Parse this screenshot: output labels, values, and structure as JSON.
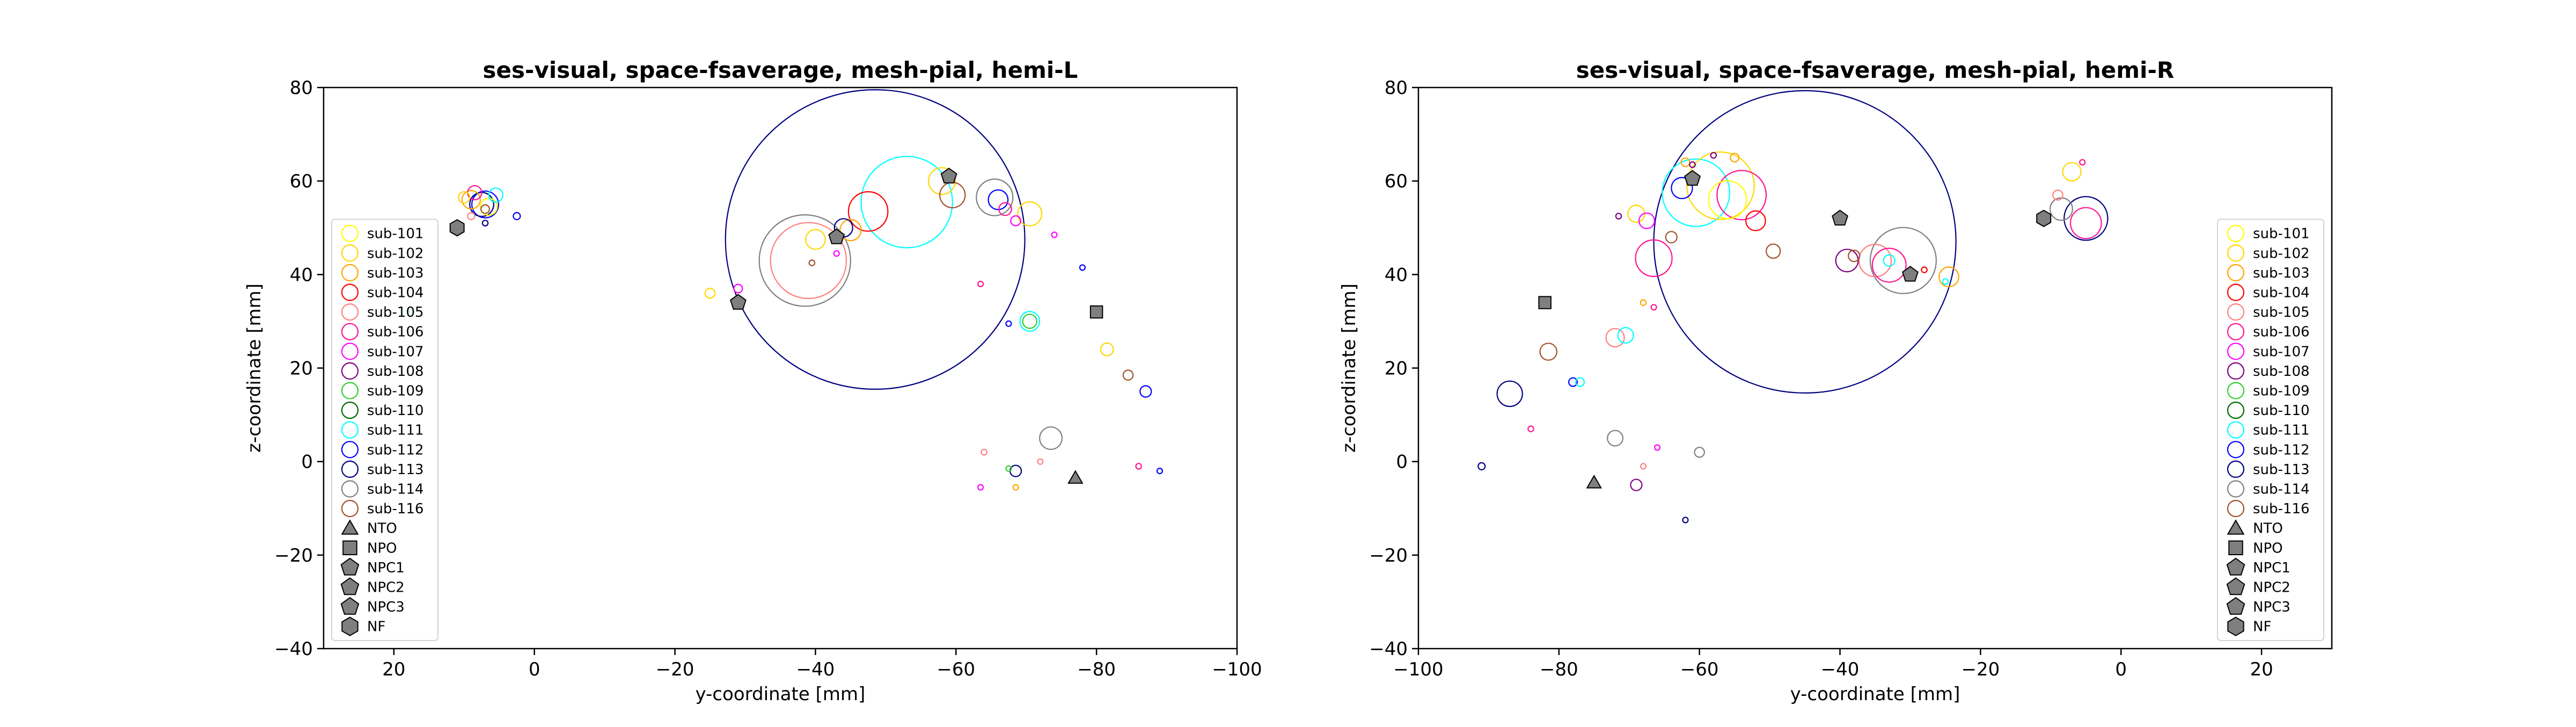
{
  "chart_data": [
    {
      "type": "scatter",
      "title": "ses-visual, space-fsaverage, mesh-pial, hemi-L",
      "xlabel": "y-coordinate [mm]",
      "ylabel": "z-coordinate [mm]",
      "xlim": [
        30,
        -100
      ],
      "ylim": [
        -40,
        80
      ],
      "xticks": [
        20,
        0,
        -20,
        -40,
        -60,
        -80,
        -100
      ],
      "xtick_labels": [
        "20",
        "0",
        "−20",
        "−40",
        "−60",
        "−80",
        "−100"
      ],
      "yticks": [
        -40,
        -20,
        0,
        20,
        40,
        60,
        80
      ],
      "ytick_labels": [
        "−40",
        "−20",
        "0",
        "20",
        "40",
        "60",
        "80"
      ],
      "grid": false,
      "legend_position": "lower-left",
      "legend": [
        {
          "label": "sub-101",
          "marker": "circle",
          "color": "#ffff00"
        },
        {
          "label": "sub-102",
          "marker": "circle",
          "color": "#ffd700"
        },
        {
          "label": "sub-103",
          "marker": "circle",
          "color": "#ffa500"
        },
        {
          "label": "sub-104",
          "marker": "circle",
          "color": "#ff0000"
        },
        {
          "label": "sub-105",
          "marker": "circle",
          "color": "#ff8080"
        },
        {
          "label": "sub-106",
          "marker": "circle",
          "color": "#ff1493"
        },
        {
          "label": "sub-107",
          "marker": "circle",
          "color": "#ff00ff"
        },
        {
          "label": "sub-108",
          "marker": "circle",
          "color": "#800080"
        },
        {
          "label": "sub-109",
          "marker": "circle",
          "color": "#32cd32"
        },
        {
          "label": "sub-110",
          "marker": "circle",
          "color": "#006400"
        },
        {
          "label": "sub-111",
          "marker": "circle",
          "color": "#00ffff"
        },
        {
          "label": "sub-112",
          "marker": "circle",
          "color": "#0000ff"
        },
        {
          "label": "sub-113",
          "marker": "circle",
          "color": "#000080"
        },
        {
          "label": "sub-114",
          "marker": "circle",
          "color": "#808080"
        },
        {
          "label": "sub-116",
          "marker": "circle",
          "color": "#a0522d"
        },
        {
          "label": "NTO",
          "marker": "triangle",
          "color": "#808080"
        },
        {
          "label": "NPO",
          "marker": "square",
          "color": "#808080"
        },
        {
          "label": "NPC1",
          "marker": "pentagon",
          "color": "#808080"
        },
        {
          "label": "NPC2",
          "marker": "pentagon",
          "color": "#808080"
        },
        {
          "label": "NPC3",
          "marker": "pentagon",
          "color": "#808080"
        },
        {
          "label": "NF",
          "marker": "hexagon",
          "color": "#808080"
        }
      ],
      "subject_points": [
        {
          "x": -48.5,
          "y": 47.5,
          "r": 21.3,
          "color": "#000080"
        },
        {
          "x": -53,
          "y": 55.5,
          "r": 6.5,
          "color": "#00ffff"
        },
        {
          "x": -38.5,
          "y": 43,
          "r": 6.5,
          "color": "#808080"
        },
        {
          "x": -39,
          "y": 43,
          "r": 5.4,
          "color": "#ff8080"
        },
        {
          "x": -47.5,
          "y": 53.5,
          "r": 2.8,
          "color": "#ff0000"
        },
        {
          "x": -40,
          "y": 47.5,
          "r": 1.4,
          "color": "#ffd700"
        },
        {
          "x": -45,
          "y": 49.5,
          "r": 1.5,
          "color": "#ffa500"
        },
        {
          "x": -44,
          "y": 50,
          "r": 1.3,
          "color": "#000080"
        },
        {
          "x": -58,
          "y": 60,
          "r": 1.9,
          "color": "#ffd700"
        },
        {
          "x": -59.5,
          "y": 57,
          "r": 1.8,
          "color": "#a0522d"
        },
        {
          "x": -65.5,
          "y": 56.5,
          "r": 2.6,
          "color": "#808080"
        },
        {
          "x": -66,
          "y": 56,
          "r": 1.4,
          "color": "#0000ff"
        },
        {
          "x": -70.5,
          "y": 53,
          "r": 1.7,
          "color": "#ffd700"
        },
        {
          "x": -67,
          "y": 54,
          "r": 0.9,
          "color": "#ff1493"
        },
        {
          "x": -68.5,
          "y": 51.5,
          "r": 0.7,
          "color": "#ff00ff"
        },
        {
          "x": 7,
          "y": 55,
          "r": 1.9,
          "color": "#0000ff"
        },
        {
          "x": 7.5,
          "y": 55,
          "r": 1.7,
          "color": "#000080"
        },
        {
          "x": 6.5,
          "y": 54.5,
          "r": 1.2,
          "color": "#ffff00"
        },
        {
          "x": 9,
          "y": 56,
          "r": 1.3,
          "color": "#ffa500"
        },
        {
          "x": 8.5,
          "y": 57.5,
          "r": 1,
          "color": "#ff1493"
        },
        {
          "x": 5.5,
          "y": 57,
          "r": 1,
          "color": "#00ffff"
        },
        {
          "x": 10,
          "y": 56.5,
          "r": 0.8,
          "color": "#ffd700"
        },
        {
          "x": 7,
          "y": 54,
          "r": 0.6,
          "color": "#a0522d"
        },
        {
          "x": 9,
          "y": 52.5,
          "r": 0.5,
          "color": "#ff8080"
        },
        {
          "x": 2.5,
          "y": 52.5,
          "r": 0.5,
          "color": "#0000ff"
        },
        {
          "x": 7,
          "y": 51,
          "r": 0.4,
          "color": "#000080"
        },
        {
          "x": -25,
          "y": 36,
          "r": 0.7,
          "color": "#ffd700"
        },
        {
          "x": -29,
          "y": 37,
          "r": 0.6,
          "color": "#ff00ff"
        },
        {
          "x": -39.5,
          "y": 42.5,
          "r": 0.4,
          "color": "#a0522d"
        },
        {
          "x": 17.5,
          "y": 32,
          "r": 0.3,
          "color": "#00ffff"
        },
        {
          "x": -43,
          "y": 44.5,
          "r": 0.3,
          "color": "#ff00ff"
        },
        {
          "x": -70.5,
          "y": 30,
          "r": 1.4,
          "color": "#00ffff"
        },
        {
          "x": -70.5,
          "y": 30,
          "r": 1,
          "color": "#32cd32"
        },
        {
          "x": -67.5,
          "y": 29.5,
          "r": 0.2,
          "color": "#0000ff"
        },
        {
          "x": -81.5,
          "y": 24,
          "r": 0.9,
          "color": "#ffd700"
        },
        {
          "x": -84.5,
          "y": 18.5,
          "r": 0.7,
          "color": "#a0522d"
        },
        {
          "x": -87,
          "y": 15,
          "r": 0.8,
          "color": "#0000ff"
        },
        {
          "x": -73.5,
          "y": 5,
          "r": 1.6,
          "color": "#808080"
        },
        {
          "x": -68.5,
          "y": -2,
          "r": 0.8,
          "color": "#000080"
        },
        {
          "x": -64,
          "y": 2,
          "r": 0.4,
          "color": "#ff8080"
        },
        {
          "x": -72,
          "y": 0,
          "r": 0.2,
          "color": "#ff8080"
        },
        {
          "x": -63.5,
          "y": -5.5,
          "r": 0.2,
          "color": "#ff00ff"
        },
        {
          "x": -68.5,
          "y": -5.5,
          "r": 0.3,
          "color": "#ffa500"
        },
        {
          "x": -67.5,
          "y": -1.5,
          "r": 0.3,
          "color": "#32cd32"
        },
        {
          "x": -86,
          "y": -1,
          "r": 0.4,
          "color": "#ff1493"
        },
        {
          "x": -89,
          "y": -2,
          "r": 0.3,
          "color": "#0000ff"
        },
        {
          "x": -74,
          "y": 48.5,
          "r": 0.2,
          "color": "#ff00ff"
        },
        {
          "x": -78,
          "y": 41.5,
          "r": 0.2,
          "color": "#0000ff"
        },
        {
          "x": -63.5,
          "y": 38,
          "r": 0.2,
          "color": "#ff1493"
        }
      ],
      "reference_points": [
        {
          "label": "NTO",
          "marker": "triangle",
          "x": -77,
          "y": -3.5
        },
        {
          "label": "NPO",
          "marker": "square",
          "x": -80,
          "y": 32
        },
        {
          "label": "NPC1",
          "marker": "pentagon",
          "x": -29,
          "y": 34
        },
        {
          "label": "NPC2",
          "marker": "pentagon",
          "x": -43,
          "y": 48
        },
        {
          "label": "NPC3",
          "marker": "pentagon",
          "x": -59,
          "y": 61
        },
        {
          "label": "NF",
          "marker": "hexagon",
          "x": 11,
          "y": 50
        }
      ]
    },
    {
      "type": "scatter",
      "title": "ses-visual, space-fsaverage, mesh-pial, hemi-R",
      "xlabel": "y-coordinate [mm]",
      "ylabel": "z-coordinate [mm]",
      "xlim": [
        -100,
        30
      ],
      "ylim": [
        -40,
        80
      ],
      "xticks": [
        -100,
        -80,
        -60,
        -40,
        -20,
        0,
        20
      ],
      "xtick_labels": [
        "−100",
        "−80",
        "−60",
        "−40",
        "−20",
        "0",
        "20"
      ],
      "yticks": [
        -40,
        -20,
        0,
        20,
        40,
        60,
        80
      ],
      "ytick_labels": [
        "−40",
        "−20",
        "0",
        "20",
        "40",
        "60",
        "80"
      ],
      "grid": false,
      "legend_position": "lower-right",
      "legend": [
        {
          "label": "sub-101",
          "marker": "circle",
          "color": "#ffff00"
        },
        {
          "label": "sub-102",
          "marker": "circle",
          "color": "#ffd700"
        },
        {
          "label": "sub-103",
          "marker": "circle",
          "color": "#ffa500"
        },
        {
          "label": "sub-104",
          "marker": "circle",
          "color": "#ff0000"
        },
        {
          "label": "sub-105",
          "marker": "circle",
          "color": "#ff8080"
        },
        {
          "label": "sub-106",
          "marker": "circle",
          "color": "#ff1493"
        },
        {
          "label": "sub-107",
          "marker": "circle",
          "color": "#ff00ff"
        },
        {
          "label": "sub-108",
          "marker": "circle",
          "color": "#800080"
        },
        {
          "label": "sub-109",
          "marker": "circle",
          "color": "#32cd32"
        },
        {
          "label": "sub-110",
          "marker": "circle",
          "color": "#006400"
        },
        {
          "label": "sub-111",
          "marker": "circle",
          "color": "#00ffff"
        },
        {
          "label": "sub-112",
          "marker": "circle",
          "color": "#0000ff"
        },
        {
          "label": "sub-113",
          "marker": "circle",
          "color": "#000080"
        },
        {
          "label": "sub-114",
          "marker": "circle",
          "color": "#808080"
        },
        {
          "label": "sub-116",
          "marker": "circle",
          "color": "#a0522d"
        },
        {
          "label": "NTO",
          "marker": "triangle",
          "color": "#808080"
        },
        {
          "label": "NPO",
          "marker": "square",
          "color": "#808080"
        },
        {
          "label": "NPC1",
          "marker": "pentagon",
          "color": "#808080"
        },
        {
          "label": "NPC2",
          "marker": "pentagon",
          "color": "#808080"
        },
        {
          "label": "NPC3",
          "marker": "pentagon",
          "color": "#808080"
        },
        {
          "label": "NF",
          "marker": "hexagon",
          "color": "#808080"
        }
      ],
      "subject_points": [
        {
          "x": -45,
          "y": 47,
          "r": 21.5,
          "color": "#000080"
        },
        {
          "x": -31,
          "y": 43,
          "r": 4.7,
          "color": "#808080"
        },
        {
          "x": -60.5,
          "y": 57.5,
          "r": 4.8,
          "color": "#00ffff"
        },
        {
          "x": -57,
          "y": 59,
          "r": 4.8,
          "color": "#ffd700"
        },
        {
          "x": -54,
          "y": 57,
          "r": 3.5,
          "color": "#ff1493"
        },
        {
          "x": -56,
          "y": 56,
          "r": 2.7,
          "color": "#ffff00"
        },
        {
          "x": -35,
          "y": 43,
          "r": 2.3,
          "color": "#ff8080"
        },
        {
          "x": -33,
          "y": 42,
          "r": 2.4,
          "color": "#ff1493"
        },
        {
          "x": -66.5,
          "y": 43.5,
          "r": 2.6,
          "color": "#ff1493"
        },
        {
          "x": -39,
          "y": 43,
          "r": 1.6,
          "color": "#800080"
        },
        {
          "x": -52,
          "y": 51.5,
          "r": 1.4,
          "color": "#ff0000"
        },
        {
          "x": -5,
          "y": 52,
          "r": 3.1,
          "color": "#000080"
        },
        {
          "x": -5,
          "y": 51,
          "r": 2.2,
          "color": "#ff1493"
        },
        {
          "x": -8.5,
          "y": 54,
          "r": 1.6,
          "color": "#808080"
        },
        {
          "x": -7,
          "y": 62,
          "r": 1.3,
          "color": "#ffd700"
        },
        {
          "x": -9,
          "y": 57,
          "r": 0.7,
          "color": "#ff8080"
        },
        {
          "x": -24.5,
          "y": 39.5,
          "r": 1.4,
          "color": "#ffa500"
        },
        {
          "x": -62.5,
          "y": 58.5,
          "r": 1.5,
          "color": "#0000ff"
        },
        {
          "x": -62,
          "y": 64,
          "r": 0.6,
          "color": "#ffa500"
        },
        {
          "x": -61,
          "y": 63.5,
          "r": 0.4,
          "color": "#800080"
        },
        {
          "x": -69,
          "y": 53,
          "r": 1.2,
          "color": "#ffd700"
        },
        {
          "x": -67.5,
          "y": 51.5,
          "r": 1.1,
          "color": "#ff00ff"
        },
        {
          "x": -71.5,
          "y": 52.5,
          "r": 0.4,
          "color": "#800080"
        },
        {
          "x": -55,
          "y": 65,
          "r": 0.6,
          "color": "#ffa500"
        },
        {
          "x": -58,
          "y": 65.5,
          "r": 0.4,
          "color": "#800080"
        },
        {
          "x": -49.5,
          "y": 45,
          "r": 1,
          "color": "#a0522d"
        },
        {
          "x": -64,
          "y": 48,
          "r": 0.8,
          "color": "#a0522d"
        },
        {
          "x": -38,
          "y": 44,
          "r": 0.8,
          "color": "#a0522d"
        },
        {
          "x": -33,
          "y": 43,
          "r": 0.8,
          "color": "#00ffff"
        },
        {
          "x": -28,
          "y": 41,
          "r": 0.4,
          "color": "#ff0000"
        },
        {
          "x": -25,
          "y": 38.5,
          "r": 0.4,
          "color": "#00ffff"
        },
        {
          "x": -5.5,
          "y": 64,
          "r": 0.3,
          "color": "#ff1493"
        },
        {
          "x": -72,
          "y": 26.5,
          "r": 1.3,
          "color": "#ff8080"
        },
        {
          "x": -70.5,
          "y": 27,
          "r": 1.1,
          "color": "#00ffff"
        },
        {
          "x": -68,
          "y": 34,
          "r": 0.4,
          "color": "#ffa500"
        },
        {
          "x": -66.5,
          "y": 33,
          "r": 0.2,
          "color": "#ff1493"
        },
        {
          "x": -81.5,
          "y": 23.5,
          "r": 1.2,
          "color": "#a0522d"
        },
        {
          "x": -78,
          "y": 17,
          "r": 0.6,
          "color": "#0000ff"
        },
        {
          "x": -77,
          "y": 17,
          "r": 0.6,
          "color": "#00ffff"
        },
        {
          "x": -87,
          "y": 14.5,
          "r": 1.8,
          "color": "#000080"
        },
        {
          "x": -84,
          "y": 7,
          "r": 0.4,
          "color": "#ff1493"
        },
        {
          "x": -72,
          "y": 5,
          "r": 1.1,
          "color": "#808080"
        },
        {
          "x": -66,
          "y": 3,
          "r": 0.2,
          "color": "#ff00ff"
        },
        {
          "x": -60,
          "y": 2,
          "r": 0.7,
          "color": "#808080"
        },
        {
          "x": -68,
          "y": -1,
          "r": 0.2,
          "color": "#ff8080"
        },
        {
          "x": -69,
          "y": -5,
          "r": 0.8,
          "color": "#800080"
        },
        {
          "x": -91,
          "y": -1,
          "r": 0.5,
          "color": "#000080"
        },
        {
          "x": -62,
          "y": -12.5,
          "r": 0.3,
          "color": "#000080"
        }
      ],
      "reference_points": [
        {
          "label": "NTO",
          "marker": "triangle",
          "x": -75,
          "y": -4.5
        },
        {
          "label": "NPO",
          "marker": "square",
          "x": -82,
          "y": 34
        },
        {
          "label": "NPC1",
          "marker": "pentagon",
          "x": -40,
          "y": 52
        },
        {
          "label": "NPC2",
          "marker": "pentagon",
          "x": -30,
          "y": 40
        },
        {
          "label": "NPC3",
          "marker": "pentagon",
          "x": -61,
          "y": 60.5
        },
        {
          "label": "NF",
          "marker": "hexagon",
          "x": -11,
          "y": 52
        }
      ]
    }
  ]
}
